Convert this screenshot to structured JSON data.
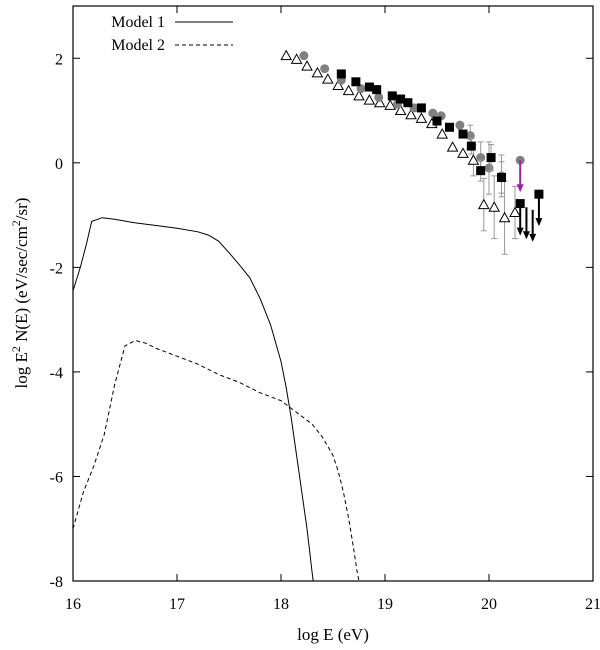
{
  "chart_data": {
    "type": "scatter",
    "title": "",
    "xlabel": "log E (eV)",
    "ylabel_parts": [
      "log E",
      "2",
      " N(E)  (eV/sec/cm",
      "2",
      "/sr)"
    ],
    "xlim": [
      16,
      21
    ],
    "ylim": [
      -8,
      3
    ],
    "x_ticks": [
      16,
      17,
      18,
      19,
      20,
      21
    ],
    "y_ticks": [
      2,
      0,
      -2,
      -4,
      -6,
      -8
    ],
    "grid": false,
    "legend_position": "top-left",
    "curves": [
      {
        "name": "Model 1",
        "dash": "solid",
        "color": "#000000",
        "x": [
          16.0,
          16.07,
          16.13,
          16.18,
          16.28,
          16.4,
          16.6,
          16.8,
          17.0,
          17.2,
          17.3,
          17.4,
          17.5,
          17.6,
          17.7,
          17.8,
          17.9,
          18.0,
          18.05,
          18.1,
          18.15,
          18.2,
          18.25,
          18.28,
          18.3,
          18.31
        ],
        "y": [
          -2.45,
          -2.0,
          -1.55,
          -1.12,
          -1.05,
          -1.08,
          -1.15,
          -1.2,
          -1.25,
          -1.32,
          -1.38,
          -1.5,
          -1.72,
          -1.95,
          -2.2,
          -2.6,
          -3.1,
          -3.8,
          -4.3,
          -4.9,
          -5.6,
          -6.3,
          -7.0,
          -7.5,
          -7.85,
          -8.0
        ]
      },
      {
        "name": "Model 2",
        "dash": "dashed",
        "color": "#000000",
        "x": [
          16.0,
          16.1,
          16.2,
          16.3,
          16.4,
          16.5,
          16.6,
          16.7,
          16.8,
          17.0,
          17.2,
          17.4,
          17.6,
          17.8,
          18.0,
          18.2,
          18.3,
          18.4,
          18.5,
          18.55,
          18.6,
          18.65,
          18.7,
          18.73,
          18.75
        ],
        "y": [
          -7.0,
          -6.3,
          -5.8,
          -5.2,
          -4.25,
          -3.5,
          -3.4,
          -3.45,
          -3.55,
          -3.7,
          -3.85,
          -4.05,
          -4.2,
          -4.4,
          -4.55,
          -4.85,
          -5.0,
          -5.25,
          -5.6,
          -5.9,
          -6.3,
          -6.8,
          -7.4,
          -7.8,
          -8.0
        ]
      }
    ],
    "series": [
      {
        "marker": "open-triangle",
        "color": "#000000",
        "x": [
          18.05,
          18.15,
          18.25,
          18.35,
          18.45,
          18.55,
          18.65,
          18.75,
          18.85,
          18.95,
          19.05,
          19.15,
          19.25,
          19.35,
          19.45,
          19.55,
          19.65,
          19.75,
          19.85,
          19.95,
          20.05,
          20.15,
          20.25
        ],
        "y": [
          2.05,
          1.98,
          1.85,
          1.72,
          1.6,
          1.48,
          1.38,
          1.28,
          1.2,
          1.15,
          1.1,
          1.0,
          0.92,
          0.85,
          0.75,
          0.55,
          0.3,
          0.18,
          0.05,
          -0.8,
          -0.85,
          -1.05,
          -0.95
        ],
        "y_err": [
          0,
          0,
          0,
          0,
          0,
          0,
          0,
          0,
          0,
          0,
          0,
          0,
          0,
          0,
          0,
          0,
          0,
          0,
          0.3,
          0.5,
          0.6,
          0.7,
          0.5
        ],
        "upper_limits_x": [],
        "upper_limits_y": []
      },
      {
        "marker": "filled-circle",
        "color": "#808080",
        "x": [
          18.22,
          18.42,
          18.58,
          18.77,
          18.94,
          19.12,
          19.28,
          19.46,
          19.54,
          19.72,
          19.82,
          19.92,
          20.0,
          20.12,
          20.3
        ],
        "y": [
          2.05,
          1.8,
          1.58,
          1.42,
          1.25,
          1.12,
          1.05,
          0.95,
          0.9,
          0.72,
          0.52,
          0.1,
          -0.1,
          -0.25,
          0.05
        ],
        "y_err": [
          0,
          0,
          0,
          0,
          0,
          0,
          0,
          0,
          0,
          0,
          0.2,
          0.3,
          0.5,
          0.4,
          0
        ],
        "upper_limits_x": [
          20.3
        ],
        "upper_limits_y": [
          0.05
        ],
        "upper_limit_color": "#a020a0"
      },
      {
        "marker": "filled-square",
        "color": "#000000",
        "x": [
          18.58,
          18.72,
          18.85,
          18.92,
          19.07,
          19.15,
          19.22,
          19.35,
          19.5,
          19.62,
          19.75,
          19.83,
          19.92,
          20.02,
          20.12,
          20.3,
          20.48
        ],
        "y": [
          1.7,
          1.55,
          1.45,
          1.4,
          1.28,
          1.22,
          1.15,
          1.05,
          0.8,
          0.68,
          0.55,
          0.32,
          -0.15,
          0.1,
          -0.28,
          -0.78,
          -0.6
        ],
        "y_err": [
          0,
          0,
          0,
          0,
          0,
          0,
          0,
          0,
          0,
          0,
          0,
          0.15,
          0.2,
          0.25,
          0.3,
          0,
          0
        ],
        "upper_limits_x": [
          20.3,
          20.36,
          20.42,
          20.48
        ],
        "upper_limits_y": [
          -0.78,
          -0.85,
          -0.9,
          -0.6
        ]
      }
    ]
  }
}
